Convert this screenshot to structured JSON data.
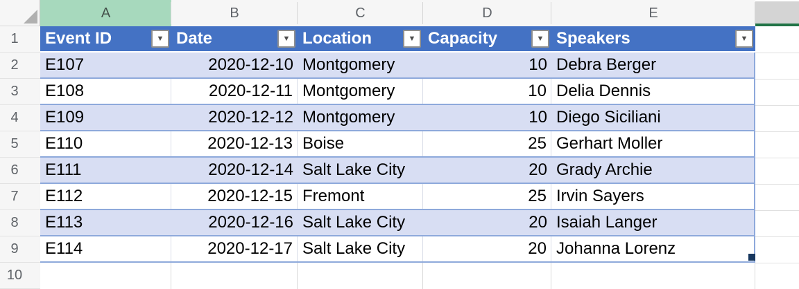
{
  "sheet": {
    "column_letters": [
      "A",
      "B",
      "C",
      "D",
      "E"
    ],
    "row_numbers": [
      "1",
      "2",
      "3",
      "4",
      "5",
      "6",
      "7",
      "8",
      "9",
      "10"
    ]
  },
  "selection": {
    "selected_column": "A",
    "active_column": "F"
  },
  "icons": {
    "filter_dropdown": "▼",
    "select_all_triangle": "corner-triangle"
  },
  "table": {
    "columns": [
      {
        "label": "Event ID",
        "align": "left"
      },
      {
        "label": "Date",
        "align": "right"
      },
      {
        "label": "Location",
        "align": "left"
      },
      {
        "label": "Capacity",
        "align": "right"
      },
      {
        "label": "Speakers",
        "align": "left"
      }
    ],
    "rows": [
      [
        "E107",
        "2020-12-10",
        "Montgomery",
        "10",
        "Debra Berger"
      ],
      [
        "E108",
        "2020-12-11",
        "Montgomery",
        "10",
        "Delia Dennis"
      ],
      [
        "E109",
        "2020-12-12",
        "Montgomery",
        "10",
        "Diego Siciliani"
      ],
      [
        "E110",
        "2020-12-13",
        "Boise",
        "25",
        "Gerhart Moller"
      ],
      [
        "E111",
        "2020-12-14",
        "Salt Lake City",
        "20",
        "Grady Archie"
      ],
      [
        "E112",
        "2020-12-15",
        "Fremont",
        "25",
        "Irvin Sayers"
      ],
      [
        "E113",
        "2020-12-16",
        "Salt Lake City",
        "20",
        "Isaiah Langer"
      ],
      [
        "E114",
        "2020-12-17",
        "Salt Lake City",
        "20",
        "Johanna Lorenz"
      ]
    ]
  },
  "colors": {
    "table_header_fill": "#4472C4",
    "table_header_text": "#FFFFFF",
    "banded_row_fill": "#D8DEF3",
    "table_border": "#8EA9DB",
    "selected_column_header_fill": "#A7D9BD",
    "active_column_header_fill": "#D4D4D4",
    "active_cell_accent_green": "#217346",
    "resize_handle": "#17375E"
  }
}
